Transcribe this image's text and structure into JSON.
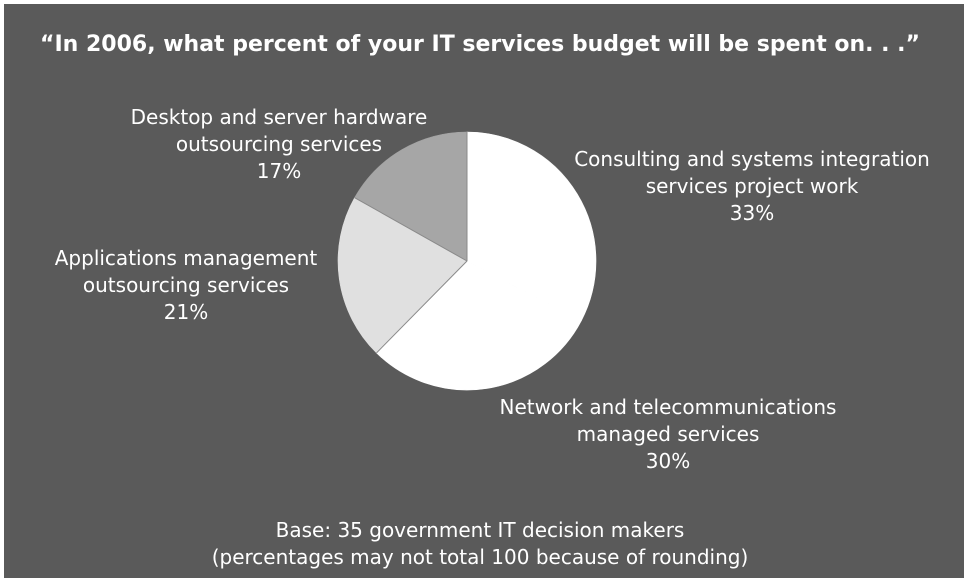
{
  "chart_data": {
    "type": "pie",
    "title": "“In 2006, what percent of your IT services budget will be spent on. . .”",
    "slices": [
      {
        "label_lines": [
          "Consulting and systems integration",
          "services project work"
        ],
        "value": 33,
        "value_label": "33%",
        "color": "#ffffff"
      },
      {
        "label_lines": [
          "Network and telecommunications",
          "managed services"
        ],
        "value": 30,
        "value_label": "30%",
        "color": "#ffffff"
      },
      {
        "label_lines": [
          "Applications management",
          "outsourcing services"
        ],
        "value": 21,
        "value_label": "21%",
        "color": "#e0e0e0"
      },
      {
        "label_lines": [
          "Desktop and server hardware",
          "outsourcing services"
        ],
        "value": 17,
        "value_label": "17%",
        "color": "#a6a6a6"
      }
    ],
    "footnote_lines": [
      "Base: 35 government IT decision makers",
      "(percentages may not total 100 because of rounding)"
    ],
    "background_color": "#5a5a5a"
  }
}
